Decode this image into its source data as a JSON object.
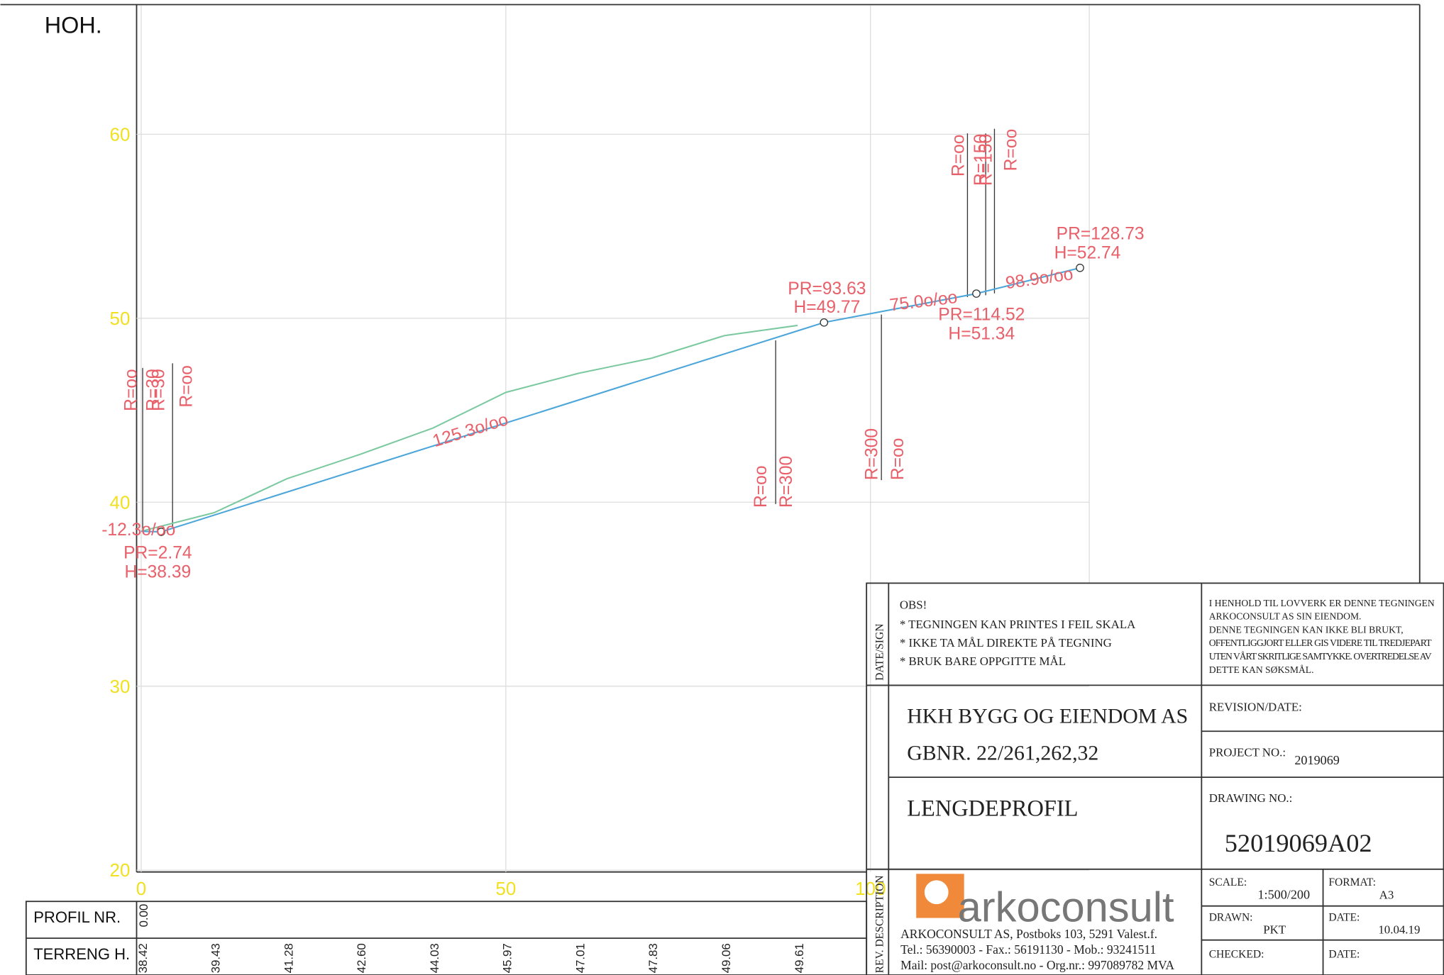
{
  "chart_data": {
    "type": "line",
    "y_label": "HOH.",
    "xlim": [
      0,
      130
    ],
    "ylim": [
      20,
      67
    ],
    "xticks": [
      0,
      50,
      100
    ],
    "yticks": [
      20,
      30,
      40,
      50,
      60
    ],
    "grid": true,
    "series": [
      {
        "color": "#7cc9a0",
        "x": [
          0,
          10,
          20,
          30,
          40,
          50,
          60,
          70,
          80,
          90
        ],
        "values": [
          38.42,
          39.43,
          41.28,
          42.6,
          44.03,
          45.97,
          47.01,
          47.83,
          49.06,
          49.61
        ],
        "value_labels": [
          "38.42",
          "39.43",
          "41.28",
          "42.60",
          "44.03",
          "45.97",
          "47.01",
          "47.83",
          "49.06",
          "49.61"
        ]
      },
      {
        "color": "#4da6d9",
        "x": [
          0,
          2.74,
          93.63,
          114.52,
          128.73
        ],
        "values": [
          38.42,
          38.39,
          49.77,
          51.34,
          52.74
        ]
      }
    ],
    "annotations": [
      "R=oo",
      "R=30",
      "R=30",
      "R=oo",
      "-12.3o/oo",
      "PR=2.74",
      "H=38.39",
      "125.3o/oo",
      "R=oo",
      "R=300",
      "PR=93.63",
      "H=49.77",
      "R=300",
      "R=oo",
      "75.0o/oo",
      "PR=114.52",
      "H=51.34",
      "R=oo",
      "R=150",
      "R=150",
      "R=oo",
      "98.9o/oo",
      "PR=128.73",
      "H=52.74"
    ],
    "table": {
      "row_labels": [
        "PROFIL NR.",
        "TERRENG H."
      ],
      "profile_nr": [
        "0.00"
      ]
    }
  },
  "title_block": {
    "side_labels": [
      "DATE/SIGN",
      "REV. DESCRIPTION"
    ],
    "notice_title": "OBS!",
    "notice": [
      "* TEGNINGEN KAN PRINTES I FEIL SKALA",
      "* IKKE TA MÅL DIREKTE PÅ TEGNING",
      "* BRUK BARE OPPGITTE MÅL"
    ],
    "legal": [
      "I HENHOLD TIL LOVVERK ER DENNE TEGNINGEN",
      "ARKOCONSULT AS SIN EIENDOM.",
      "DENNE TEGNINGEN KAN IKKE BLI BRUKT,",
      "OFFENTLIGGJORT ELLER GIS VIDERE TIL TREDJEPART",
      "UTEN VÅRT SKRITLIGE SAMTYKKE. OVERTREDELSE AV",
      "DETTE KAN SØKSMÅL."
    ],
    "client": "HKH BYGG OG EIENDOM AS",
    "property": "GBNR. 22/261,262,32",
    "drawing_title": "LENGDEPROFIL",
    "revision_label": "REVISION/DATE:",
    "project_label": "PROJECT NO.:",
    "project_no": "2019069",
    "drawing_label": "DRAWING NO.:",
    "drawing_no": "52019069A02",
    "scale_label": "SCALE:",
    "scale": "1:500/200",
    "format_label": "FORMAT:",
    "format": "A3",
    "drawn_label": "DRAWN:",
    "drawn": "PKT",
    "date_label": "DATE:",
    "date": "10.04.19",
    "checked_label": "CHECKED:",
    "date2_label": "DATE:",
    "logo": "arkoconsult",
    "address": [
      "ARKOCONSULT AS, Postboks 103, 5291 Valest.f.",
      "Tel.: 56390003 - Fax.: 56191130 - Mob.: 93241511",
      "Mail: post@arkoconsult.no - Org.nr.: 997089782 MVA"
    ]
  }
}
